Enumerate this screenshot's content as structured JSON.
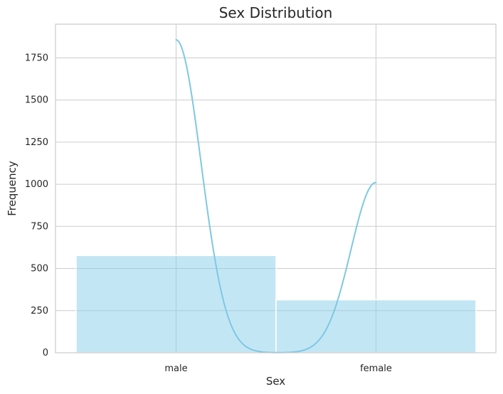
{
  "chart_data": {
    "type": "bar",
    "title": "Sex Distribution",
    "xlabel": "Sex",
    "ylabel": "Frequency",
    "categories": [
      "male",
      "female"
    ],
    "values": [
      577,
      314
    ],
    "ylim": [
      0,
      1950
    ],
    "yticks": [
      0,
      250,
      500,
      750,
      1000,
      1250,
      1500,
      1750
    ],
    "grid": true,
    "colors": {
      "bar_fill": "#87ceeb",
      "kde_line": "#7ec8e3",
      "grid": "#cccccc",
      "axes": "#cccccc",
      "text": "#262626"
    },
    "kde": {
      "x_range": [
        0,
        1
      ],
      "peaks": [
        1857,
        1015
      ]
    }
  }
}
